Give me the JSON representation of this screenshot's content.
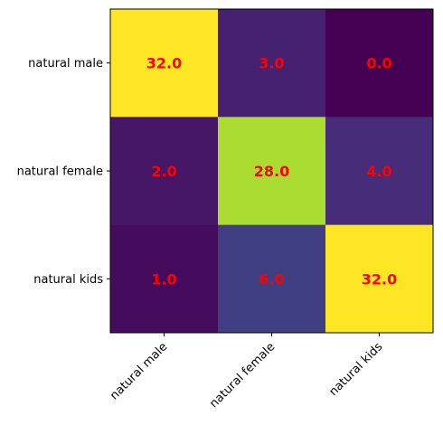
{
  "chart_data": {
    "type": "heatmap",
    "title": "",
    "xlabel": "",
    "ylabel": "",
    "x_categories": [
      "natural male",
      "natural female",
      "natural kids"
    ],
    "y_categories": [
      "natural male",
      "natural female",
      "natural kids"
    ],
    "values": [
      [
        32.0,
        3.0,
        0.0
      ],
      [
        2.0,
        28.0,
        4.0
      ],
      [
        1.0,
        6.0,
        32.0
      ]
    ],
    "value_labels": [
      [
        "32.0",
        "3.0",
        "0.0"
      ],
      [
        "2.0",
        "28.0",
        "4.0"
      ],
      [
        "1.0",
        "6.0",
        "32.0"
      ]
    ],
    "colormap": "viridis",
    "vmin": 0,
    "vmax": 32,
    "annotation_color": "#ff0000",
    "x_tick_rotation": 45,
    "grid": false,
    "colorbar": false
  }
}
